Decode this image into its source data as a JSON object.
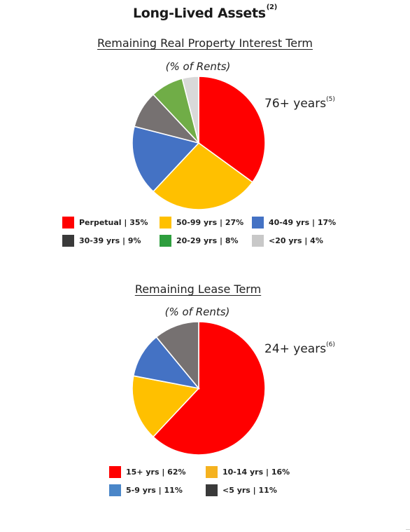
{
  "header": {
    "title": "Long-Lived Assets",
    "title_footnote": "(2)"
  },
  "chart_data": [
    {
      "type": "pie",
      "title": "Remaining Real Property Interest Term",
      "subtitle": "(% of Rents)",
      "callout": "76+ years",
      "callout_footnote": "(5)",
      "start_angle_deg": 0,
      "direction": "clockwise",
      "slices": [
        {
          "label": "Perpetual",
          "value": 35,
          "legend": "Perpetual | 35%",
          "color": "#ff0000"
        },
        {
          "label": "50-99 yrs",
          "value": 27,
          "legend": "50-99 yrs | 27%",
          "color": "#ffc000"
        },
        {
          "label": "40-49 yrs",
          "value": 17,
          "legend": "40-49 yrs | 17%",
          "color": "#4472c4"
        },
        {
          "label": "30-39 yrs",
          "value": 9,
          "legend": "30-39 yrs | 9%",
          "color": "#767171"
        },
        {
          "label": "20-29 yrs",
          "value": 8,
          "legend": "20-29 yrs | 8%",
          "color": "#70ad47"
        },
        {
          "label": "<20 yrs",
          "value": 4,
          "legend": "<20 yrs | 4%",
          "color": "#d9d9d9"
        }
      ],
      "legend_swatch_colors": [
        "#ff0000",
        "#ffc000",
        "#4472c4",
        "#3a3a3a",
        "#2e9e3e",
        "#c8c8c8"
      ]
    },
    {
      "type": "pie",
      "title": "Remaining Lease Term",
      "subtitle": "(% of Rents)",
      "callout": "24+ years",
      "callout_footnote": "(6)",
      "start_angle_deg": 0,
      "direction": "clockwise",
      "slices": [
        {
          "label": "15+ yrs",
          "value": 62,
          "legend": "15+ yrs | 62%",
          "color": "#ff0000"
        },
        {
          "label": "10-14 yrs",
          "value": 16,
          "legend": "10-14 yrs | 16%",
          "color": "#ffc000"
        },
        {
          "label": "5-9 yrs",
          "value": 11,
          "legend": "5-9 yrs | 11%",
          "color": "#4472c4"
        },
        {
          "label": "<5 yrs",
          "value": 11,
          "legend": "<5 yrs | 11%",
          "color": "#767171"
        }
      ],
      "legend_swatch_colors": [
        "#ff0000",
        "#f5b21f",
        "#4a86c8",
        "#3a3a3a"
      ]
    }
  ]
}
